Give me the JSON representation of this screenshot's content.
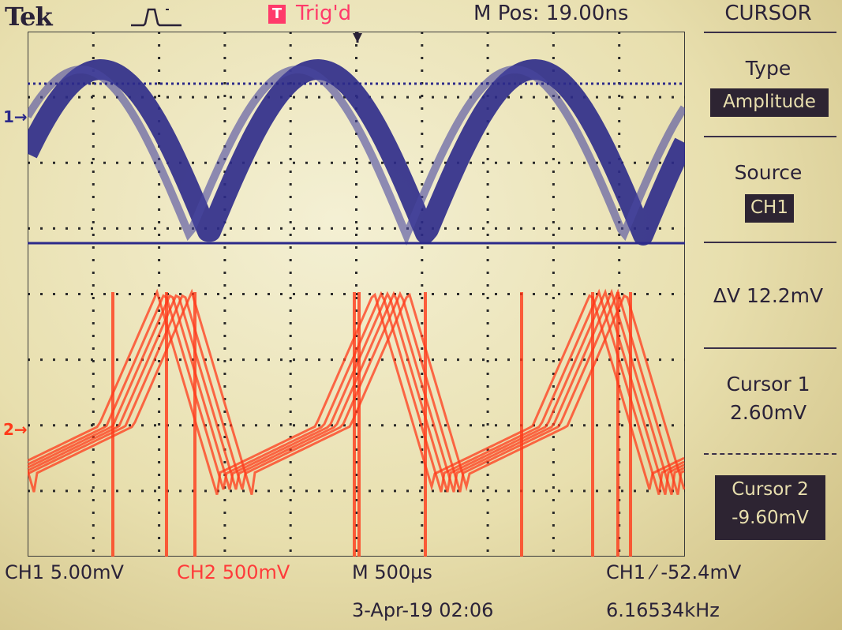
{
  "header": {
    "brand": "Tek",
    "trigger_status": "Trig'd",
    "trigger_icon": "T",
    "m_pos": "M Pos: 19.00ns"
  },
  "menu": {
    "title": "CURSOR",
    "type_label": "Type",
    "type_value": "Amplitude",
    "source_label": "Source",
    "source_value": "CH1",
    "delta_v": "ΔV 12.2mV",
    "cursor1_label": "Cursor 1",
    "cursor1_value": "2.60mV",
    "cursor2_label": "Cursor 2",
    "cursor2_value": "-9.60mV"
  },
  "markers": {
    "ch1": "1",
    "ch2": "2"
  },
  "status": {
    "ch1_scale": "CH1  5.00mV",
    "ch2_scale": "CH2  500mV",
    "timebase": "M 500µs",
    "trigger": "CH1 ⁄ -52.4mV",
    "date": "3-Apr-19 02:06",
    "frequency": "6.16534kHz"
  },
  "colors": {
    "ch1": "#2c2a8a",
    "ch2": "#ff3a1a",
    "trigger": "#ff3a6a",
    "text": "#2a2238"
  }
}
